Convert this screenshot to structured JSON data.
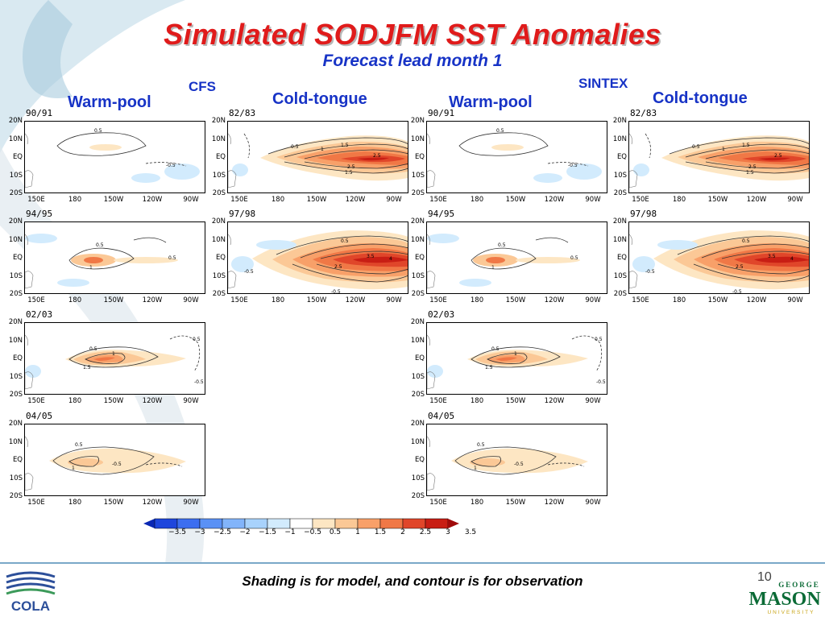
{
  "slide": {
    "title": "Simulated SODJFM SST Anomalies",
    "subtitle": "Forecast lead month 1",
    "footer": "Shading is for model, and contour is for observation",
    "page_number": "10"
  },
  "labels": {
    "cfs": "CFS",
    "sintex": "SINTEX",
    "warm_pool_1": "Warm-pool",
    "cold_tongue_1": "Cold-tongue",
    "warm_pool_2": "Warm-pool",
    "cold_tongue_2": "Cold-tongue"
  },
  "axes": {
    "y_ticks": [
      "20N",
      "10N",
      "EQ",
      "10S",
      "20S"
    ],
    "x_ticks": [
      "150E",
      "180",
      "150W",
      "120W",
      "90W"
    ]
  },
  "panels": [
    {
      "id": "cfs-warm-1",
      "title": "90/91"
    },
    {
      "id": "cfs-cold-1",
      "title": "82/83"
    },
    {
      "id": "sin-warm-1",
      "title": "90/91"
    },
    {
      "id": "sin-cold-1",
      "title": "82/83"
    },
    {
      "id": "cfs-warm-2",
      "title": "94/95"
    },
    {
      "id": "cfs-cold-2",
      "title": "97/98"
    },
    {
      "id": "sin-warm-2",
      "title": "94/95"
    },
    {
      "id": "sin-cold-2",
      "title": "97/98"
    },
    {
      "id": "cfs-warm-3",
      "title": "02/03"
    },
    {
      "id": "sin-warm-3",
      "title": "02/03"
    },
    {
      "id": "cfs-warm-4",
      "title": "04/05"
    },
    {
      "id": "sin-warm-4",
      "title": "04/05"
    }
  ],
  "colorbar": {
    "ticks": [
      "−3.5",
      "−3",
      "−2.5",
      "−2",
      "−1.5",
      "−1",
      "−0.5",
      "0.5",
      "1",
      "1.5",
      "2",
      "2.5",
      "3",
      "3.5"
    ],
    "colors": [
      "#0a28b4",
      "#1e46dc",
      "#3c6ef0",
      "#5a91f5",
      "#82b4fa",
      "#a8d2fc",
      "#d2ebfd",
      "#ffffff",
      "#fde6c3",
      "#fbc896",
      "#f8a069",
      "#f07846",
      "#e0462a",
      "#c81e14",
      "#a00a0a"
    ]
  },
  "branding": {
    "cola": "COLA",
    "mason_top": "GEORGE",
    "mason_main": "MASON",
    "mason_bottom": "UNIVERSITY"
  }
}
